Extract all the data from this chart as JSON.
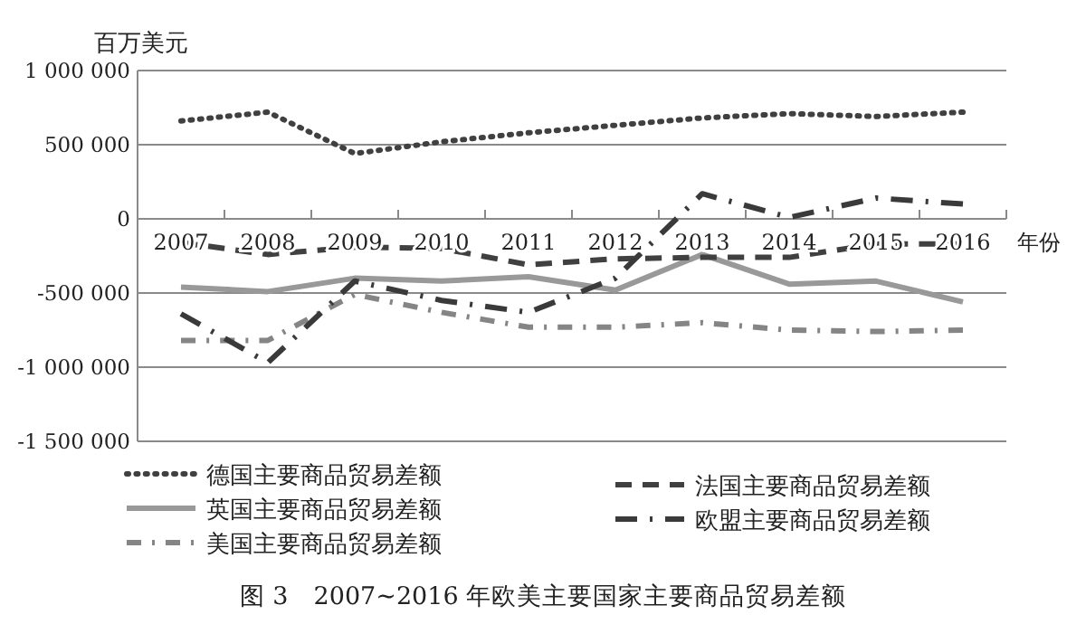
{
  "chart_data": {
    "type": "line",
    "title": "图 3　2007~2016 年欧美主要国家主要商品贸易差额",
    "ylabel": "百万美元",
    "xlabel": "年份",
    "categories": [
      "2007",
      "2008",
      "2009",
      "2010",
      "2011",
      "2012",
      "2013",
      "2014",
      "2015",
      "2016"
    ],
    "ylim": [
      -1500000,
      1000000
    ],
    "yticks": [
      {
        "value": -1500000,
        "label": "-1 500 000"
      },
      {
        "value": -1000000,
        "label": "-1 000 000"
      },
      {
        "value": -500000,
        "label": "-500 000"
      },
      0,
      {
        "value": 500000,
        "label": "500 000"
      },
      {
        "value": 1000000,
        "label": "1 000 000"
      }
    ],
    "grid": "y",
    "legend": "bottom",
    "marker": "none",
    "series": [
      {
        "name": "德国主要商品贸易差额",
        "color": "#404040",
        "line_style": "dotted",
        "values": [
          660000,
          720000,
          440000,
          520000,
          580000,
          630000,
          680000,
          710000,
          690000,
          720000
        ]
      },
      {
        "name": "英国主要商品贸易差额",
        "color": "#999999",
        "line_style": "solid",
        "values": [
          -460000,
          -490000,
          -400000,
          -420000,
          -390000,
          -480000,
          -240000,
          -440000,
          -420000,
          -560000
        ]
      },
      {
        "name": "美国主要商品贸易差额",
        "color": "#858585",
        "line_style": "dashdot",
        "values": [
          -820000,
          -820000,
          -510000,
          -630000,
          -730000,
          -730000,
          -700000,
          -750000,
          -760000,
          -750000
        ]
      },
      {
        "name": "法国主要商品贸易差额",
        "color": "#404040",
        "line_style": "dashed",
        "values": [
          -160000,
          -240000,
          -190000,
          -200000,
          -310000,
          -270000,
          -260000,
          -260000,
          -170000,
          -170000
        ]
      },
      {
        "name": "欧盟主要商品贸易差额",
        "color": "#3a3a3a",
        "line_style": "longdashdot",
        "values": [
          -640000,
          -970000,
          -420000,
          -550000,
          -630000,
          -400000,
          170000,
          10000,
          140000,
          100000
        ]
      }
    ]
  }
}
